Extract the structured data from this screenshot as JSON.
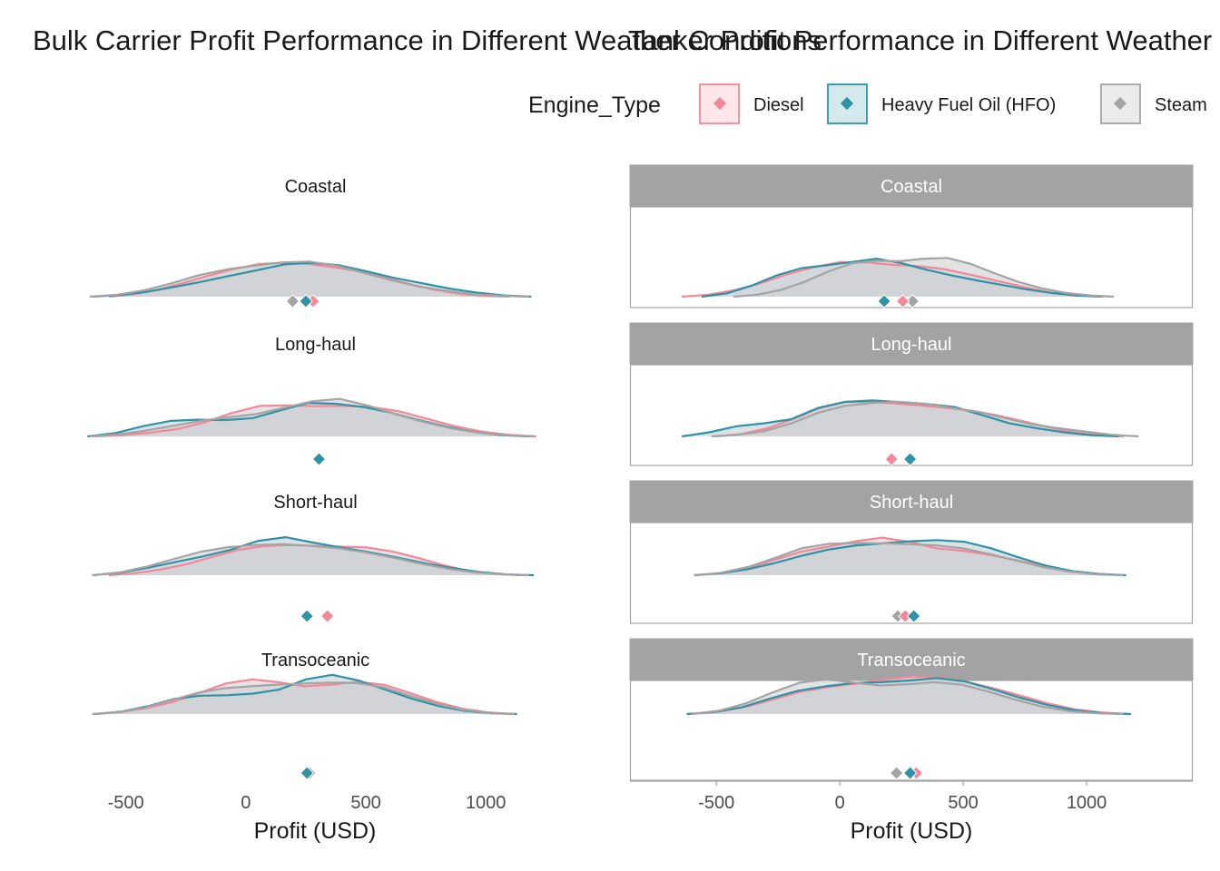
{
  "legend": {
    "title": "Engine_Type",
    "items": [
      {
        "label": "Diesel",
        "color": "#F4879A",
        "fill": "#FDE7EB"
      },
      {
        "label": "Heavy Fuel Oil (HFO)",
        "color": "#2E93A4",
        "fill": "#D4E9EC"
      },
      {
        "label": "Steam",
        "color": "#A4A4A4",
        "fill": "#EBEBEB"
      }
    ]
  },
  "shared_fill": "#CDCED3",
  "chart_data": [
    {
      "type": "area",
      "subtype": "faceted density with mean markers",
      "title": "Bulk Carrier Profit Performance in Different Weather Conditions",
      "xlabel": "Profit (USD)",
      "ylabel": "",
      "x_ticks": [
        -500,
        0,
        500,
        1000
      ],
      "xlim": [
        -650,
        1230
      ],
      "facet_strip_style": "plain",
      "facets": [
        {
          "label": "Coastal",
          "mean_markers": {
            "Diesel": 280,
            "Heavy Fuel Oil (HFO)": 250,
            "Steam": 195
          },
          "series": [
            {
              "name": "Diesel",
              "range": [
                -570,
                1100
              ],
              "density": [
                0,
                0.06,
                0.18,
                0.34,
                0.52,
                0.68,
                0.8,
                0.83,
                0.8,
                0.72,
                0.62,
                0.47,
                0.31,
                0.17,
                0.07,
                0.02,
                0
              ]
            },
            {
              "name": "Heavy Fuel Oil (HFO)",
              "range": [
                -640,
                1190
              ],
              "density": [
                0,
                0.04,
                0.12,
                0.24,
                0.37,
                0.51,
                0.65,
                0.79,
                0.83,
                0.77,
                0.62,
                0.46,
                0.33,
                0.2,
                0.1,
                0.03,
                0
              ]
            },
            {
              "name": "Steam",
              "range": [
                -650,
                1180
              ],
              "density": [
                0,
                0.05,
                0.16,
                0.33,
                0.53,
                0.67,
                0.76,
                0.84,
                0.86,
                0.76,
                0.58,
                0.4,
                0.25,
                0.14,
                0.06,
                0.02,
                0
              ]
            }
          ]
        },
        {
          "label": "Long-haul",
          "mean_markers": {
            "Diesel": 305,
            "Heavy Fuel Oil (HFO)": 305,
            "Steam": 305
          },
          "series": [
            {
              "name": "Diesel",
              "range": [
                -630,
                1210
              ],
              "density": [
                0,
                0.03,
                0.09,
                0.18,
                0.35,
                0.58,
                0.75,
                0.76,
                0.74,
                0.75,
                0.72,
                0.62,
                0.44,
                0.26,
                0.12,
                0.04,
                0
              ]
            },
            {
              "name": "Heavy Fuel Oil (HFO)",
              "range": [
                -660,
                1180
              ],
              "density": [
                0,
                0.08,
                0.25,
                0.38,
                0.41,
                0.4,
                0.45,
                0.64,
                0.82,
                0.8,
                0.72,
                0.58,
                0.4,
                0.24,
                0.11,
                0.03,
                0
              ]
            },
            {
              "name": "Steam",
              "range": [
                -650,
                1200
              ],
              "density": [
                0,
                0.05,
                0.14,
                0.26,
                0.38,
                0.47,
                0.55,
                0.7,
                0.86,
                0.92,
                0.76,
                0.55,
                0.36,
                0.2,
                0.09,
                0.03,
                0
              ]
            }
          ]
        },
        {
          "label": "Short-haul",
          "mean_markers": {
            "Diesel": 340,
            "Heavy Fuel Oil (HFO)": 255,
            "Steam": 255
          },
          "series": [
            {
              "name": "Diesel",
              "range": [
                -570,
                1150
              ],
              "density": [
                0,
                0.05,
                0.14,
                0.27,
                0.45,
                0.62,
                0.71,
                0.74,
                0.72,
                0.7,
                0.68,
                0.58,
                0.42,
                0.24,
                0.1,
                0.03,
                0
              ]
            },
            {
              "name": "Heavy Fuel Oil (HFO)",
              "range": [
                -640,
                1200
              ],
              "density": [
                0,
                0.06,
                0.18,
                0.32,
                0.46,
                0.62,
                0.84,
                0.93,
                0.8,
                0.68,
                0.57,
                0.44,
                0.3,
                0.18,
                0.08,
                0.02,
                0
              ]
            },
            {
              "name": "Steam",
              "range": [
                -640,
                1180
              ],
              "density": [
                0,
                0.07,
                0.21,
                0.4,
                0.58,
                0.69,
                0.74,
                0.76,
                0.72,
                0.66,
                0.56,
                0.43,
                0.29,
                0.16,
                0.07,
                0.02,
                0
              ]
            }
          ]
        },
        {
          "label": "Transoceanic",
          "mean_markers": {
            "Diesel": 250,
            "Heavy Fuel Oil (HFO)": 255,
            "Steam": 265
          },
          "series": [
            {
              "name": "Diesel",
              "range": [
                -630,
                1120
              ],
              "density": [
                0,
                0.05,
                0.15,
                0.3,
                0.52,
                0.75,
                0.85,
                0.78,
                0.68,
                0.72,
                0.79,
                0.72,
                0.52,
                0.3,
                0.13,
                0.04,
                0
              ]
            },
            {
              "name": "Heavy Fuel Oil (HFO)",
              "range": [
                -630,
                1130
              ],
              "density": [
                0,
                0.06,
                0.19,
                0.37,
                0.45,
                0.46,
                0.5,
                0.6,
                0.85,
                0.96,
                0.82,
                0.6,
                0.38,
                0.2,
                0.08,
                0.02,
                0
              ]
            },
            {
              "name": "Steam",
              "range": [
                -640,
                1120
              ],
              "density": [
                0,
                0.05,
                0.16,
                0.34,
                0.52,
                0.63,
                0.68,
                0.72,
                0.75,
                0.77,
                0.76,
                0.66,
                0.46,
                0.26,
                0.11,
                0.03,
                0
              ]
            }
          ]
        }
      ]
    },
    {
      "type": "area",
      "subtype": "faceted density with mean markers",
      "title": "Tanker Profit Performance in Different Weather Conditions",
      "xlabel": "Profit (USD)",
      "ylabel": "",
      "x_ticks": [
        -500,
        0,
        500,
        1000
      ],
      "xlim": [
        -850,
        1430
      ],
      "facet_strip_style": "grey-box",
      "facets": [
        {
          "label": "Coastal",
          "mean_markers": {
            "Diesel": 255,
            "Heavy Fuel Oil (HFO)": 180,
            "Steam": 295
          },
          "series": [
            {
              "name": "Diesel",
              "range": [
                -640,
                1070
              ],
              "density": [
                0,
                0.05,
                0.16,
                0.33,
                0.55,
                0.72,
                0.85,
                0.84,
                0.78,
                0.75,
                0.67,
                0.53,
                0.38,
                0.23,
                0.1,
                0.03,
                0
              ]
            },
            {
              "name": "Heavy Fuel Oil (HFO)",
              "range": [
                -560,
                1060
              ],
              "density": [
                0,
                0.08,
                0.27,
                0.52,
                0.7,
                0.77,
                0.85,
                0.93,
                0.82,
                0.66,
                0.52,
                0.4,
                0.29,
                0.18,
                0.09,
                0.03,
                0
              ]
            },
            {
              "name": "Steam",
              "range": [
                -430,
                1110
              ],
              "density": [
                0,
                0.05,
                0.17,
                0.37,
                0.62,
                0.82,
                0.88,
                0.87,
                0.93,
                0.95,
                0.8,
                0.57,
                0.36,
                0.2,
                0.09,
                0.03,
                0
              ]
            }
          ]
        },
        {
          "label": "Long-haul",
          "mean_markers": {
            "Diesel": 210,
            "Heavy Fuel Oil (HFO)": 285,
            "Steam": 285
          },
          "series": [
            {
              "name": "Diesel",
              "range": [
                -500,
                1150
              ],
              "density": [
                0,
                0.06,
                0.2,
                0.42,
                0.68,
                0.84,
                0.85,
                0.81,
                0.76,
                0.7,
                0.63,
                0.52,
                0.38,
                0.23,
                0.1,
                0.03,
                0
              ]
            },
            {
              "name": "Heavy Fuel Oil (HFO)",
              "range": [
                -640,
                1130
              ],
              "density": [
                0,
                0.1,
                0.25,
                0.32,
                0.42,
                0.7,
                0.85,
                0.88,
                0.84,
                0.79,
                0.72,
                0.52,
                0.32,
                0.2,
                0.1,
                0.03,
                0
              ]
            },
            {
              "name": "Steam",
              "range": [
                -520,
                1210
              ],
              "density": [
                0,
                0.04,
                0.13,
                0.32,
                0.58,
                0.75,
                0.82,
                0.85,
                0.8,
                0.7,
                0.6,
                0.45,
                0.3,
                0.2,
                0.12,
                0.04,
                0
              ]
            }
          ]
        },
        {
          "label": "Short-haul",
          "mean_markers": {
            "Diesel": 265,
            "Heavy Fuel Oil (HFO)": 300,
            "Steam": 235
          },
          "series": [
            {
              "name": "Diesel",
              "range": [
                -590,
                1150
              ],
              "density": [
                0,
                0.05,
                0.18,
                0.38,
                0.58,
                0.7,
                0.83,
                0.92,
                0.82,
                0.66,
                0.6,
                0.5,
                0.37,
                0.23,
                0.1,
                0.03,
                0
              ]
            },
            {
              "name": "Heavy Fuel Oil (HFO)",
              "range": [
                -590,
                1160
              ],
              "density": [
                0,
                0.05,
                0.15,
                0.3,
                0.48,
                0.63,
                0.73,
                0.78,
                0.83,
                0.86,
                0.82,
                0.66,
                0.44,
                0.24,
                0.1,
                0.03,
                0
              ]
            },
            {
              "name": "Steam",
              "range": [
                -590,
                1150
              ],
              "density": [
                0,
                0.06,
                0.2,
                0.42,
                0.66,
                0.77,
                0.79,
                0.78,
                0.76,
                0.73,
                0.66,
                0.52,
                0.36,
                0.2,
                0.09,
                0.02,
                0
              ]
            }
          ]
        },
        {
          "label": "Transoceanic",
          "mean_markers": {
            "Diesel": 310,
            "Heavy Fuel Oil (HFO)": 285,
            "Steam": 230
          },
          "series": [
            {
              "name": "Diesel",
              "range": [
                -600,
                1170
              ],
              "density": [
                0,
                0.06,
                0.18,
                0.36,
                0.55,
                0.66,
                0.74,
                0.83,
                0.92,
                0.9,
                0.8,
                0.64,
                0.46,
                0.27,
                0.12,
                0.04,
                0
              ]
            },
            {
              "name": "Heavy Fuel Oil (HFO)",
              "range": [
                -620,
                1180
              ],
              "density": [
                0,
                0.05,
                0.17,
                0.38,
                0.57,
                0.68,
                0.76,
                0.78,
                0.82,
                0.88,
                0.8,
                0.61,
                0.4,
                0.22,
                0.09,
                0.02,
                0
              ]
            },
            {
              "name": "Steam",
              "range": [
                -600,
                1150
              ],
              "density": [
                0,
                0.08,
                0.26,
                0.53,
                0.77,
                0.85,
                0.77,
                0.7,
                0.73,
                0.78,
                0.72,
                0.55,
                0.35,
                0.18,
                0.07,
                0.02,
                0
              ]
            }
          ]
        }
      ]
    }
  ]
}
